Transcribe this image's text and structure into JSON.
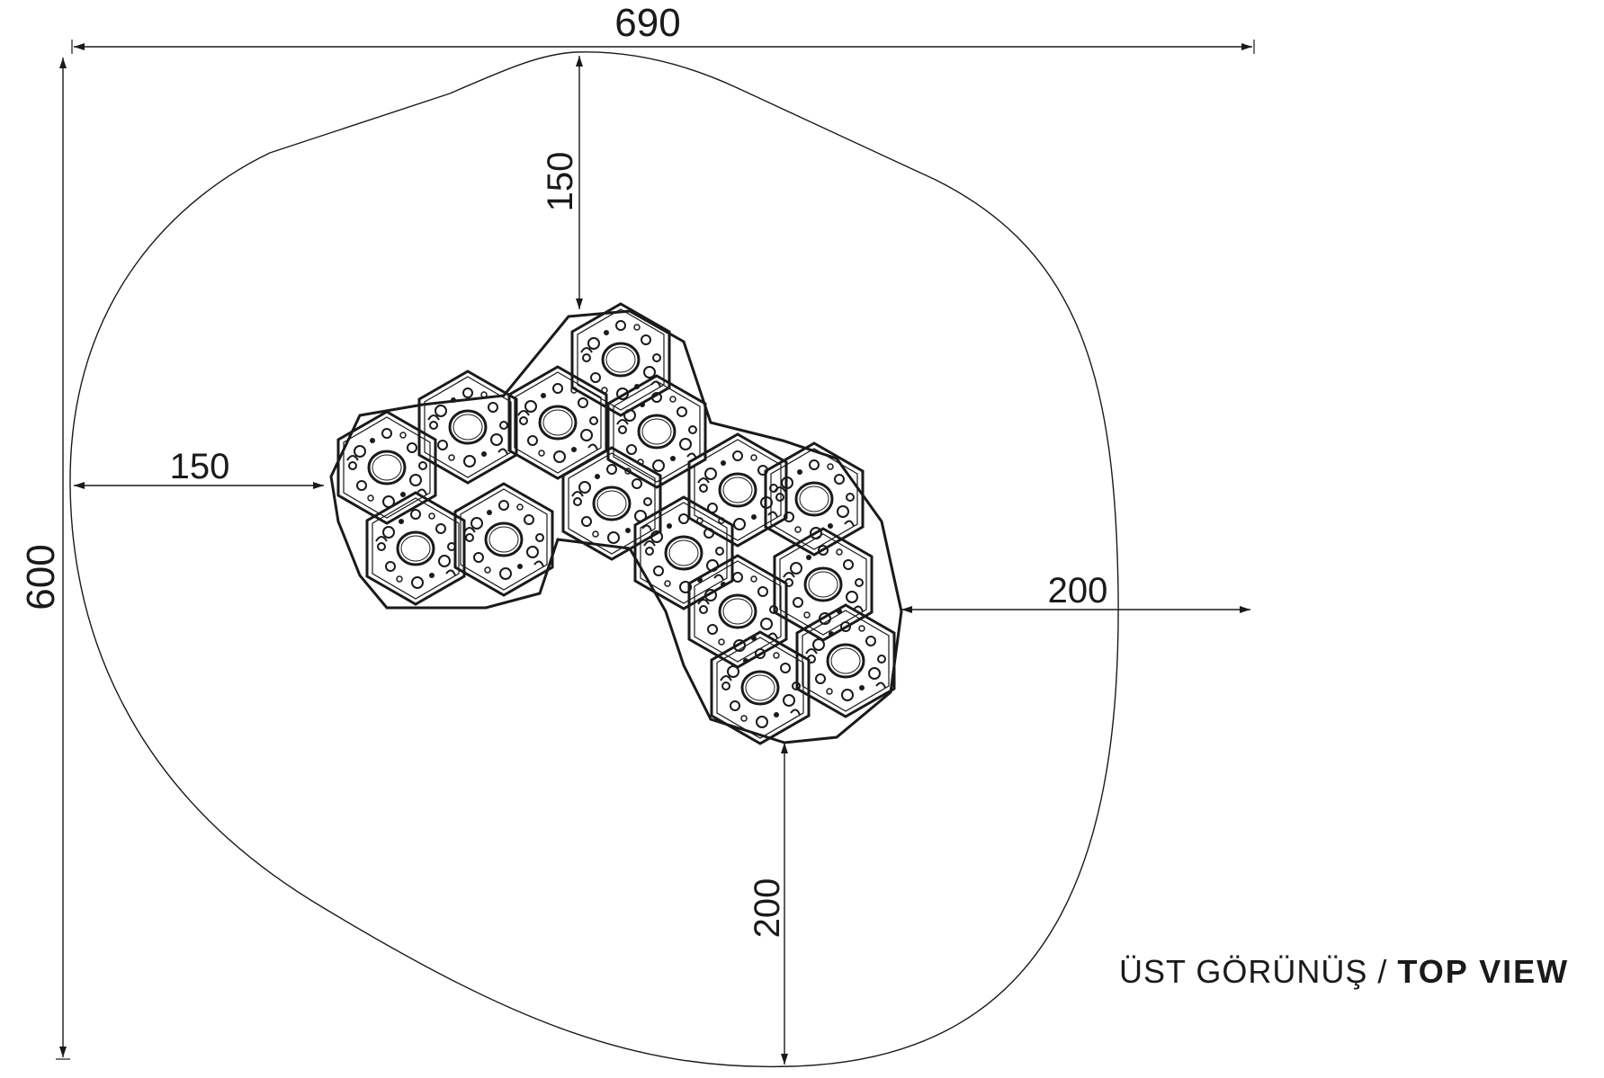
{
  "dimensions": {
    "overall_width": "690",
    "overall_depth": "600",
    "top_clearance": "150",
    "left_clearance": "150",
    "right_clearance": "200",
    "bottom_clearance": "200"
  },
  "view_label": {
    "tr": "ÜST GÖRÜNÜŞ / ",
    "en": "TOP VIEW"
  },
  "colors": {
    "line": "#1a1a1a",
    "background": "#ffffff"
  }
}
